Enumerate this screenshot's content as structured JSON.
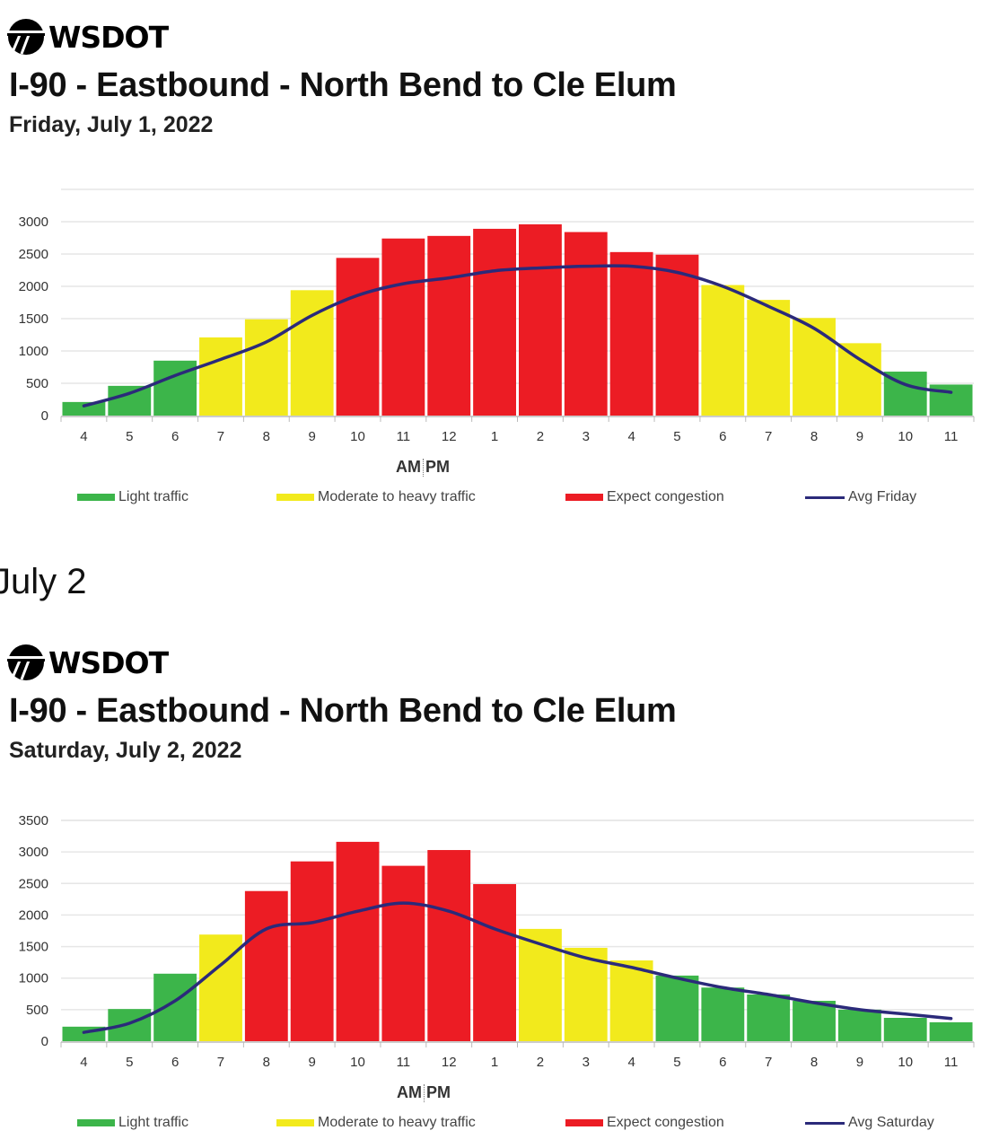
{
  "colors": {
    "light": "#3cb54a",
    "moderate": "#f2ea1c",
    "congestion": "#ec1c24",
    "avg": "#2b2a7a"
  },
  "section_heading": "July 2",
  "charts_meta": [
    {
      "logo": "WSDOT",
      "title": "I-90 - Eastbound - North Bend to Cle Elum",
      "date": "Friday, July 1, 2022",
      "ampm": {
        "am": "AM",
        "pm": "PM"
      },
      "legend": {
        "light": "Light traffic",
        "moderate": "Moderate to heavy traffic",
        "congestion": "Expect congestion",
        "avg": "Avg Friday"
      }
    },
    {
      "logo": "WSDOT",
      "title": "I-90 - Eastbound - North Bend to Cle Elum",
      "date": "Saturday, July 2, 2022",
      "ampm": {
        "am": "AM",
        "pm": "PM"
      },
      "legend": {
        "light": "Light traffic",
        "moderate": "Moderate to heavy traffic",
        "congestion": "Expect congestion",
        "avg": "Avg Saturday"
      }
    }
  ],
  "chart_data": [
    {
      "type": "bar",
      "title": "I-90 - Eastbound - North Bend to Cle Elum — Friday, July 1, 2022",
      "xlabel": "AM | PM",
      "ylabel": "",
      "ylim": [
        0,
        3500
      ],
      "yticks": [
        0,
        500,
        1000,
        1500,
        2000,
        2500,
        3000
      ],
      "grid": true,
      "legend_placement": "bottom",
      "categories": [
        "4",
        "5",
        "6",
        "7",
        "8",
        "9",
        "10",
        "11",
        "12",
        "1",
        "2",
        "3",
        "4",
        "5",
        "6",
        "7",
        "8",
        "9",
        "10",
        "11"
      ],
      "values": [
        210,
        460,
        850,
        1210,
        1490,
        1940,
        2440,
        2740,
        2780,
        2890,
        2960,
        2840,
        2530,
        2490,
        2020,
        1790,
        1510,
        1120,
        680,
        480
      ],
      "levels": [
        "light",
        "light",
        "light",
        "moderate",
        "moderate",
        "moderate",
        "congestion",
        "congestion",
        "congestion",
        "congestion",
        "congestion",
        "congestion",
        "congestion",
        "congestion",
        "moderate",
        "moderate",
        "moderate",
        "moderate",
        "light",
        "light"
      ],
      "series": [
        {
          "name": "Avg Friday",
          "type": "line",
          "values": [
            150,
            345,
            620,
            870,
            1140,
            1550,
            1860,
            2040,
            2130,
            2240,
            2285,
            2310,
            2310,
            2215,
            2000,
            1690,
            1350,
            870,
            480,
            360
          ]
        }
      ]
    },
    {
      "type": "bar",
      "title": "I-90 - Eastbound - North Bend to Cle Elum — Saturday, July 2, 2022",
      "xlabel": "AM | PM",
      "ylabel": "",
      "ylim": [
        0,
        3500
      ],
      "yticks": [
        0,
        500,
        1000,
        1500,
        2000,
        2500,
        3000,
        3500
      ],
      "grid": true,
      "legend_placement": "bottom",
      "categories": [
        "4",
        "5",
        "6",
        "7",
        "8",
        "9",
        "10",
        "11",
        "12",
        "1",
        "2",
        "3",
        "4",
        "5",
        "6",
        "7",
        "8",
        "9",
        "10",
        "11"
      ],
      "values": [
        230,
        510,
        1070,
        1690,
        2380,
        2850,
        3160,
        2780,
        3030,
        2490,
        1780,
        1480,
        1280,
        1040,
        850,
        740,
        640,
        500,
        370,
        300
      ],
      "levels": [
        "light",
        "light",
        "light",
        "moderate",
        "congestion",
        "congestion",
        "congestion",
        "congestion",
        "congestion",
        "congestion",
        "moderate",
        "moderate",
        "moderate",
        "light",
        "light",
        "light",
        "light",
        "light",
        "light",
        "light"
      ],
      "series": [
        {
          "name": "Avg Saturday",
          "type": "line",
          "values": [
            140,
            285,
            640,
            1210,
            1780,
            1880,
            2060,
            2190,
            2060,
            1780,
            1540,
            1320,
            1170,
            1000,
            850,
            740,
            610,
            500,
            430,
            360
          ]
        }
      ]
    }
  ]
}
